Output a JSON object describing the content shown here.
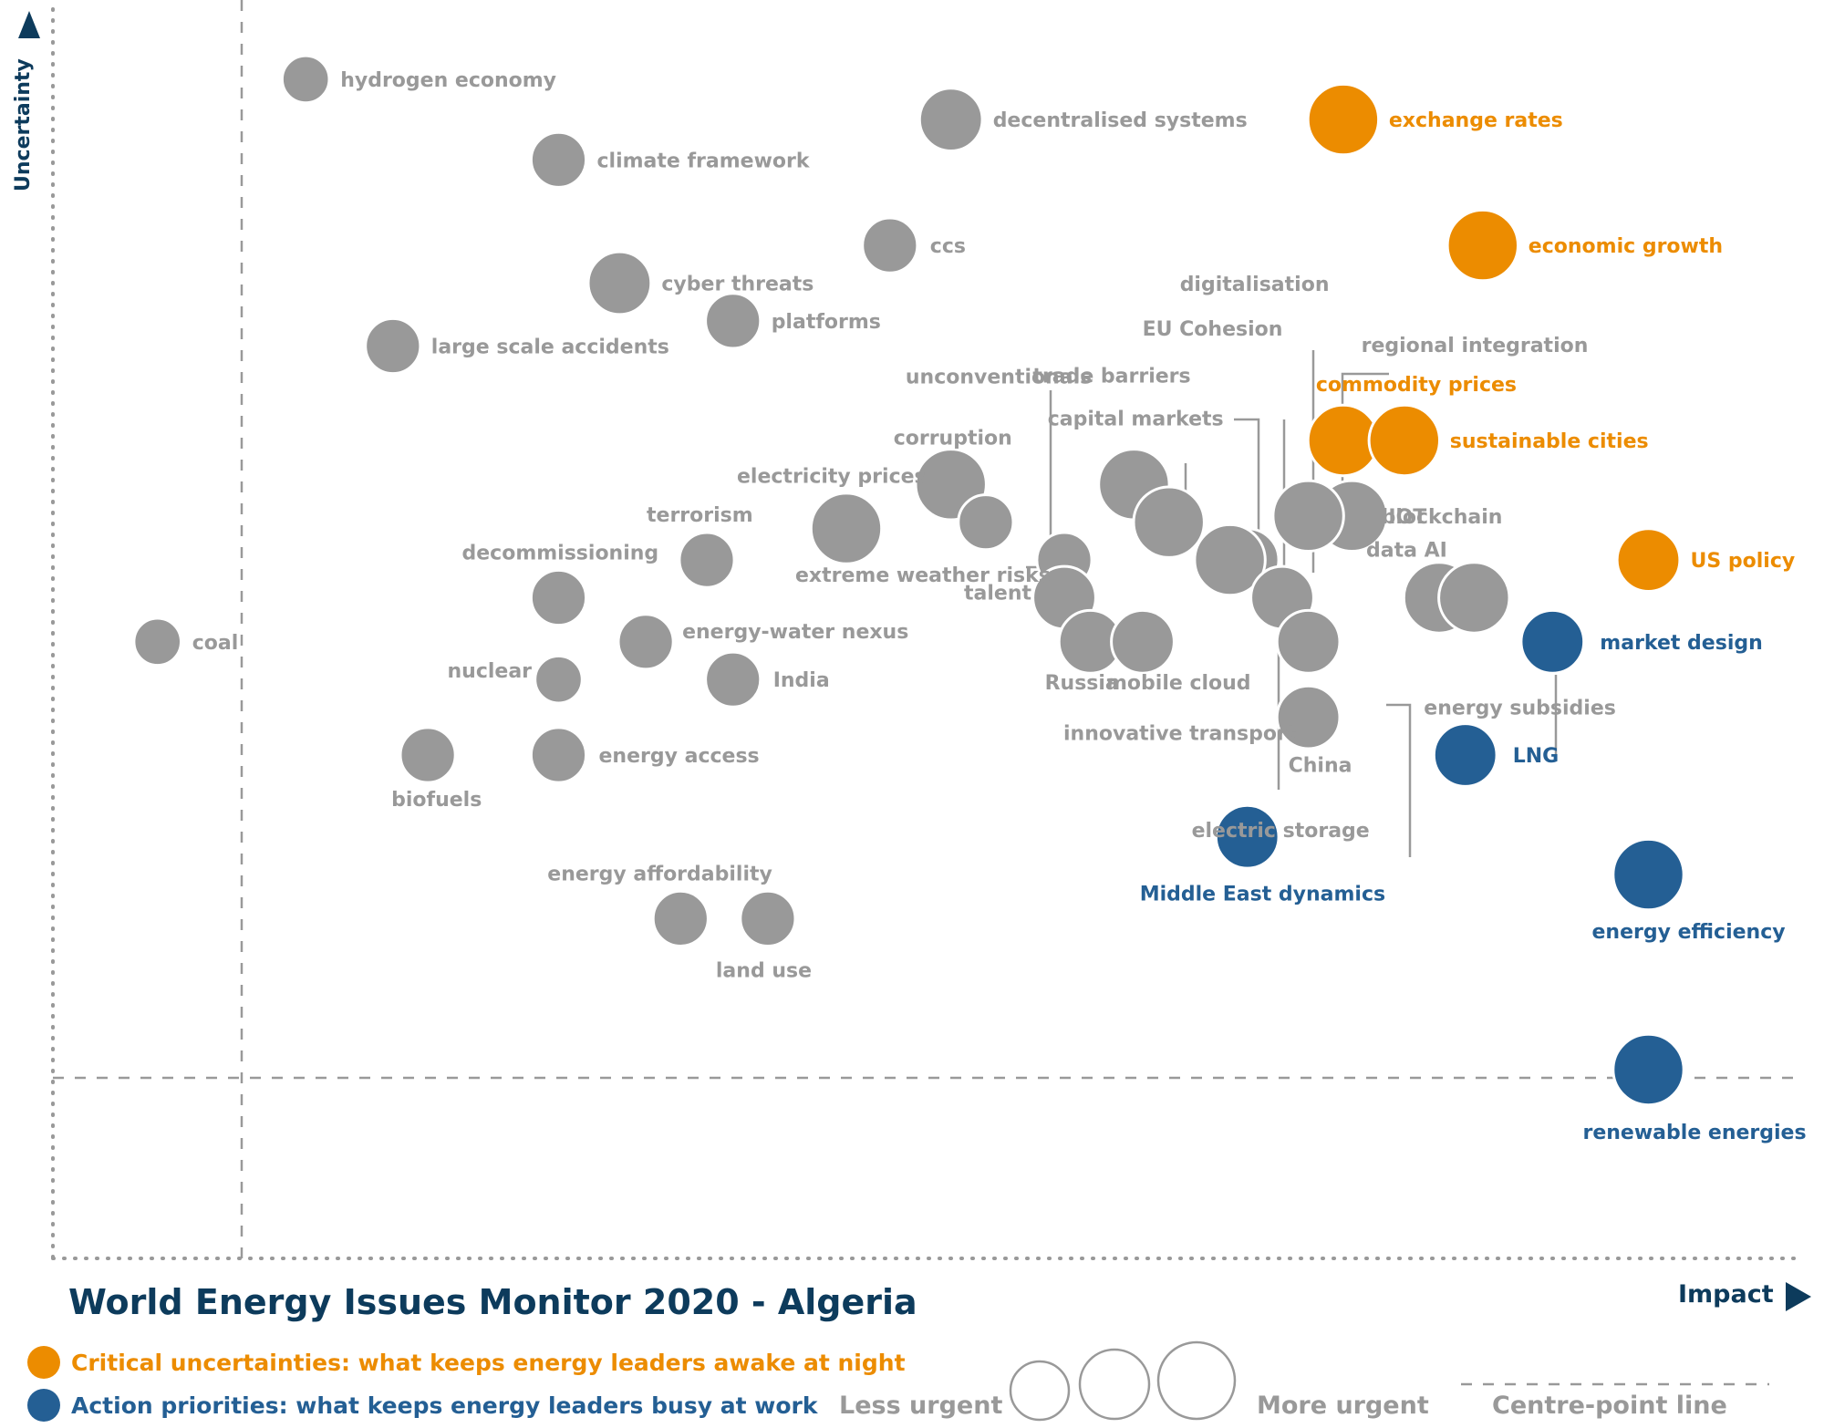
{
  "colors": {
    "critical": "#ec8c00",
    "action": "#245f94",
    "other": "#999999",
    "title": "#0d3b5c"
  },
  "axes": {
    "x_label": "Impact",
    "y_label": "Uncertainty"
  },
  "title": "World Energy Issues Monitor 2020 - Algeria",
  "legend": {
    "critical": "Critical uncertainties: what keeps energy leaders awake at night",
    "action": "Action priorities: what keeps energy leaders busy at work",
    "less_urgent": "Less urgent",
    "more_urgent": "More urgent",
    "centre_line": "Centre-point  line"
  },
  "chart_data": {
    "type": "scatter",
    "title": "World Energy Issues Monitor 2020 - Algeria",
    "xlabel": "Impact",
    "ylabel": "Uncertainty",
    "xlim": [
      0,
      100
    ],
    "ylim": [
      0,
      100
    ],
    "size_legend": [
      "Less urgent",
      "More urgent"
    ],
    "centre_point_line": {
      "x": 10.3,
      "y": 15.4
    },
    "grid": false,
    "legend_position": "bottom",
    "points": [
      {
        "label": "hydrogen economy",
        "x": 14.5,
        "y": 93.7,
        "size": 3,
        "category": "other"
      },
      {
        "label": "climate framework",
        "x": 29.0,
        "y": 87.3,
        "size": 3.5,
        "category": "other"
      },
      {
        "label": "decentralised systems",
        "x": 51.5,
        "y": 90.5,
        "size": 4,
        "category": "other"
      },
      {
        "label": "exchange rates",
        "x": 74.0,
        "y": 90.5,
        "size": 4.5,
        "category": "critical"
      },
      {
        "label": "ccs",
        "x": 48.0,
        "y": 80.5,
        "size": 3.5,
        "category": "other"
      },
      {
        "label": "economic growth",
        "x": 82.0,
        "y": 80.5,
        "size": 4.5,
        "category": "critical"
      },
      {
        "label": "cyber threats",
        "x": 32.5,
        "y": 77.5,
        "size": 4,
        "category": "other"
      },
      {
        "label": "platforms",
        "x": 39.0,
        "y": 74.5,
        "size": 3.5,
        "category": "other"
      },
      {
        "label": "large scale accidents",
        "x": 19.5,
        "y": 72.5,
        "size": 3.5,
        "category": "other"
      },
      {
        "label": "commodity prices",
        "x": 74.0,
        "y": 65.0,
        "size": 4.5,
        "category": "critical"
      },
      {
        "label": "sustainable cities",
        "x": 77.5,
        "y": 65.0,
        "size": 4.5,
        "category": "critical"
      },
      {
        "label": "corruption",
        "x": 51.5,
        "y": 61.5,
        "size": 4.5,
        "category": "other"
      },
      {
        "label": "unconventionals",
        "x": 53.5,
        "y": 58.5,
        "size": 3.5,
        "category": "other"
      },
      {
        "label": "electricity prices",
        "x": 45.5,
        "y": 58.0,
        "size": 4.5,
        "category": "other"
      },
      {
        "label": "trade barriers",
        "x": 62.0,
        "y": 61.5,
        "size": 4.5,
        "category": "other"
      },
      {
        "label": "capital markets",
        "x": 64.0,
        "y": 58.5,
        "size": 4.5,
        "category": "other"
      },
      {
        "label": "IOT",
        "x": 74.5,
        "y": 59.0,
        "size": 4.5,
        "category": "other"
      },
      {
        "label": "blockchain",
        "x": 72.0,
        "y": 59.0,
        "size": 4.5,
        "category": "other"
      },
      {
        "label": "regional integration",
        "x": 72.0,
        "y": 59.0,
        "size": 4.5,
        "category": "other"
      },
      {
        "label": "digitalisation",
        "x": 68.5,
        "y": 55.5,
        "size": 4,
        "category": "other"
      },
      {
        "label": "EU Cohesion",
        "x": 67.5,
        "y": 55.5,
        "size": 4.5,
        "category": "other"
      },
      {
        "label": "terrorism",
        "x": 37.5,
        "y": 55.5,
        "size": 3.5,
        "category": "other"
      },
      {
        "label": "extreme weather risks",
        "x": 58.0,
        "y": 55.5,
        "size": 3.5,
        "category": "other"
      },
      {
        "label": "US policy",
        "x": 91.5,
        "y": 55.5,
        "size": 4,
        "category": "critical"
      },
      {
        "label": "decommissioning",
        "x": 29.0,
        "y": 52.5,
        "size": 3.5,
        "category": "other"
      },
      {
        "label": "talent",
        "x": 58.0,
        "y": 52.5,
        "size": 4,
        "category": "other"
      },
      {
        "label": "innovative transport",
        "x": 70.5,
        "y": 52.5,
        "size": 4,
        "category": "other"
      },
      {
        "label": "data AI",
        "x": 79.5,
        "y": 52.5,
        "size": 4.5,
        "category": "other"
      },
      {
        "label": "energy subsidies",
        "x": 81.5,
        "y": 52.5,
        "size": 4.5,
        "category": "other"
      },
      {
        "label": "coal",
        "x": 6.0,
        "y": 49.0,
        "size": 3,
        "category": "other"
      },
      {
        "label": "energy-water nexus",
        "x": 34.0,
        "y": 49.0,
        "size": 3.5,
        "category": "other"
      },
      {
        "label": "Russia",
        "x": 59.5,
        "y": 49.0,
        "size": 4,
        "category": "other"
      },
      {
        "label": "mobile cloud",
        "x": 62.5,
        "y": 49.0,
        "size": 4,
        "category": "other"
      },
      {
        "label": "electric storage",
        "x": 72.0,
        "y": 49.0,
        "size": 4,
        "category": "other"
      },
      {
        "label": "market design",
        "x": 86.0,
        "y": 49.0,
        "size": 4,
        "category": "action"
      },
      {
        "label": "nuclear",
        "x": 29.0,
        "y": 46.0,
        "size": 3,
        "category": "other"
      },
      {
        "label": "India",
        "x": 39.0,
        "y": 46.0,
        "size": 3.5,
        "category": "other"
      },
      {
        "label": "China",
        "x": 72.0,
        "y": 43.0,
        "size": 4,
        "category": "other"
      },
      {
        "label": "biofuels",
        "x": 21.5,
        "y": 40.0,
        "size": 3.5,
        "category": "other"
      },
      {
        "label": "energy access",
        "x": 29.0,
        "y": 40.0,
        "size": 3.5,
        "category": "other"
      },
      {
        "label": "LNG",
        "x": 81.0,
        "y": 40.0,
        "size": 4,
        "category": "action"
      },
      {
        "label": "Middle East dynamics",
        "x": 68.5,
        "y": 33.5,
        "size": 4,
        "category": "action"
      },
      {
        "label": "energy efficiency",
        "x": 91.5,
        "y": 30.5,
        "size": 4.5,
        "category": "action"
      },
      {
        "label": "energy affordability",
        "x": 36.0,
        "y": 27.0,
        "size": 3.5,
        "category": "other"
      },
      {
        "label": "land use",
        "x": 41.0,
        "y": 27.0,
        "size": 3.5,
        "category": "other"
      },
      {
        "label": "renewable energies",
        "x": 91.5,
        "y": 15.0,
        "size": 4.5,
        "category": "action"
      }
    ]
  }
}
